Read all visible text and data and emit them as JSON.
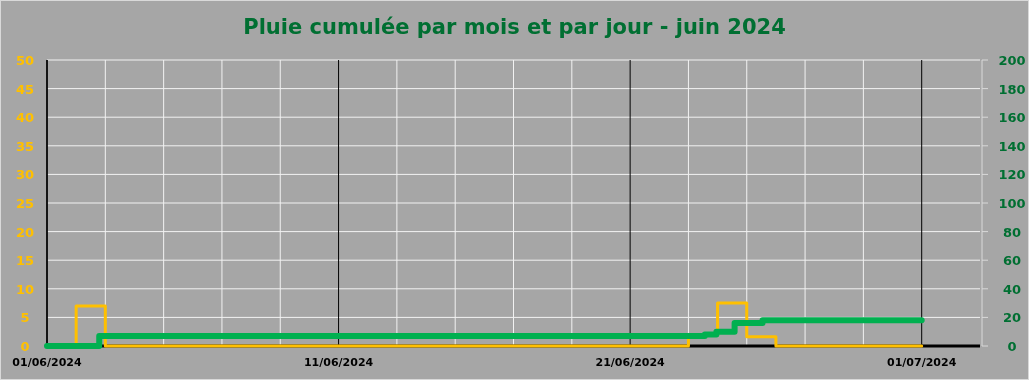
{
  "chart_data": {
    "type": "step",
    "title": "Pluie cumulée par mois et par jour - juin 2024",
    "xlim": [
      "2024-06-01",
      "2024-07-03"
    ],
    "xticks": [
      {
        "value": "2024-06-01",
        "label": "01/06/2024"
      },
      {
        "value": "2024-06-03",
        "label": null
      },
      {
        "value": "2024-06-05",
        "label": null
      },
      {
        "value": "2024-06-07",
        "label": null
      },
      {
        "value": "2024-06-09",
        "label": null
      },
      {
        "value": "2024-06-11",
        "label": "11/06/2024"
      },
      {
        "value": "2024-06-13",
        "label": null
      },
      {
        "value": "2024-06-15",
        "label": null
      },
      {
        "value": "2024-06-17",
        "label": null
      },
      {
        "value": "2024-06-19",
        "label": null
      },
      {
        "value": "2024-06-21",
        "label": "21/06/2024"
      },
      {
        "value": "2024-06-23",
        "label": null
      },
      {
        "value": "2024-06-25",
        "label": null
      },
      {
        "value": "2024-06-27",
        "label": null
      },
      {
        "value": "2024-06-29",
        "label": null
      },
      {
        "value": "2024-07-01",
        "label": "01/07/2024"
      }
    ],
    "ylim": [
      0,
      50
    ],
    "yticks": [
      0,
      5,
      10,
      15,
      20,
      25,
      30,
      35,
      40,
      45,
      50
    ],
    "y2lim": [
      0,
      200
    ],
    "y2ticks": [
      0,
      20,
      40,
      60,
      80,
      100,
      120,
      140,
      160,
      180,
      200
    ],
    "grid": true,
    "series": [
      {
        "color": "#ffc000",
        "x": [
          "2024-06-01",
          "2024-06-02",
          "2024-06-03",
          "2024-06-23",
          "2024-06-24",
          "2024-06-25",
          "2024-06-26",
          "2024-07-01"
        ],
        "values": [
          0,
          7,
          0,
          2,
          7.5,
          1.6,
          0,
          0
        ]
      },
      {
        "axis": "y2",
        "color": "#00b050",
        "x": [
          "2024-06-01",
          "2024-06-02T19:00",
          "2024-06-23T13:30",
          "2024-06-23T23:00",
          "2024-06-24T14:00",
          "2024-06-25T13:00",
          "2024-07-01"
        ],
        "values": [
          0,
          7,
          8,
          10,
          16,
          18,
          18
        ]
      }
    ]
  }
}
